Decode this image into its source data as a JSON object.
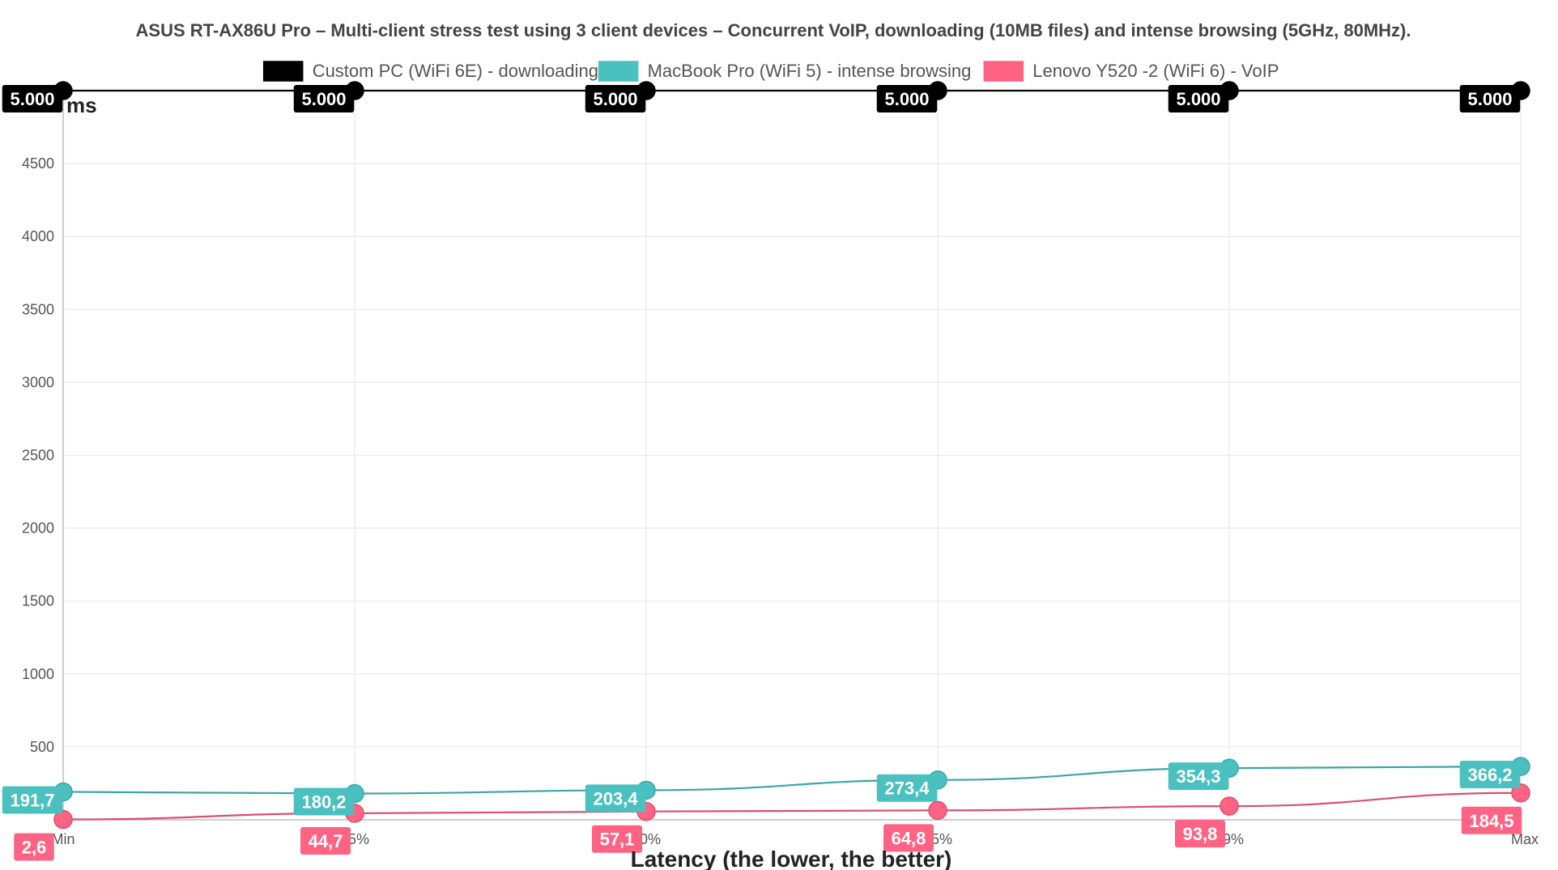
{
  "chart_data": {
    "type": "line",
    "title": "ASUS RT-AX86U Pro – Multi-client stress test using 3 client devices – Concurrent VoIP, downloading (10MB files) and intense browsing (5GHz, 80MHz).",
    "xlabel": "Latency (the lower, the better)",
    "ylabel": "ms",
    "categories": [
      "Min",
      "75%",
      "90%",
      "95%",
      "99%",
      "Max"
    ],
    "ylim": [
      0,
      5000
    ],
    "yticks": [
      500,
      1000,
      1500,
      2000,
      2500,
      3000,
      3500,
      4000,
      4500
    ],
    "grid": true,
    "legend_position": "top",
    "series": [
      {
        "name": "Custom PC (WiFi 6E) - downloading",
        "color": "#000000",
        "values": [
          5000,
          5000,
          5000,
          5000,
          5000,
          5000
        ],
        "labels": [
          "5.000",
          "5.000",
          "5.000",
          "5.000",
          "5.000",
          "5.000"
        ]
      },
      {
        "name": "MacBook Pro (WiFi 5) - intense browsing",
        "color": "#4bc0c0",
        "values": [
          191.7,
          180.2,
          203.4,
          273.4,
          354.3,
          366.2
        ],
        "labels": [
          "191,7",
          "180,2",
          "203,4",
          "273,4",
          "354,3",
          "366,2"
        ]
      },
      {
        "name": "Lenovo Y520 -2 (WiFi 6) - VoIP",
        "color": "#ff6384",
        "values": [
          2.6,
          44.7,
          57.1,
          64.8,
          93.8,
          184.5
        ],
        "labels": [
          "2,6",
          "44,7",
          "57,1",
          "64,8",
          "93,8",
          "184,5"
        ]
      }
    ]
  }
}
